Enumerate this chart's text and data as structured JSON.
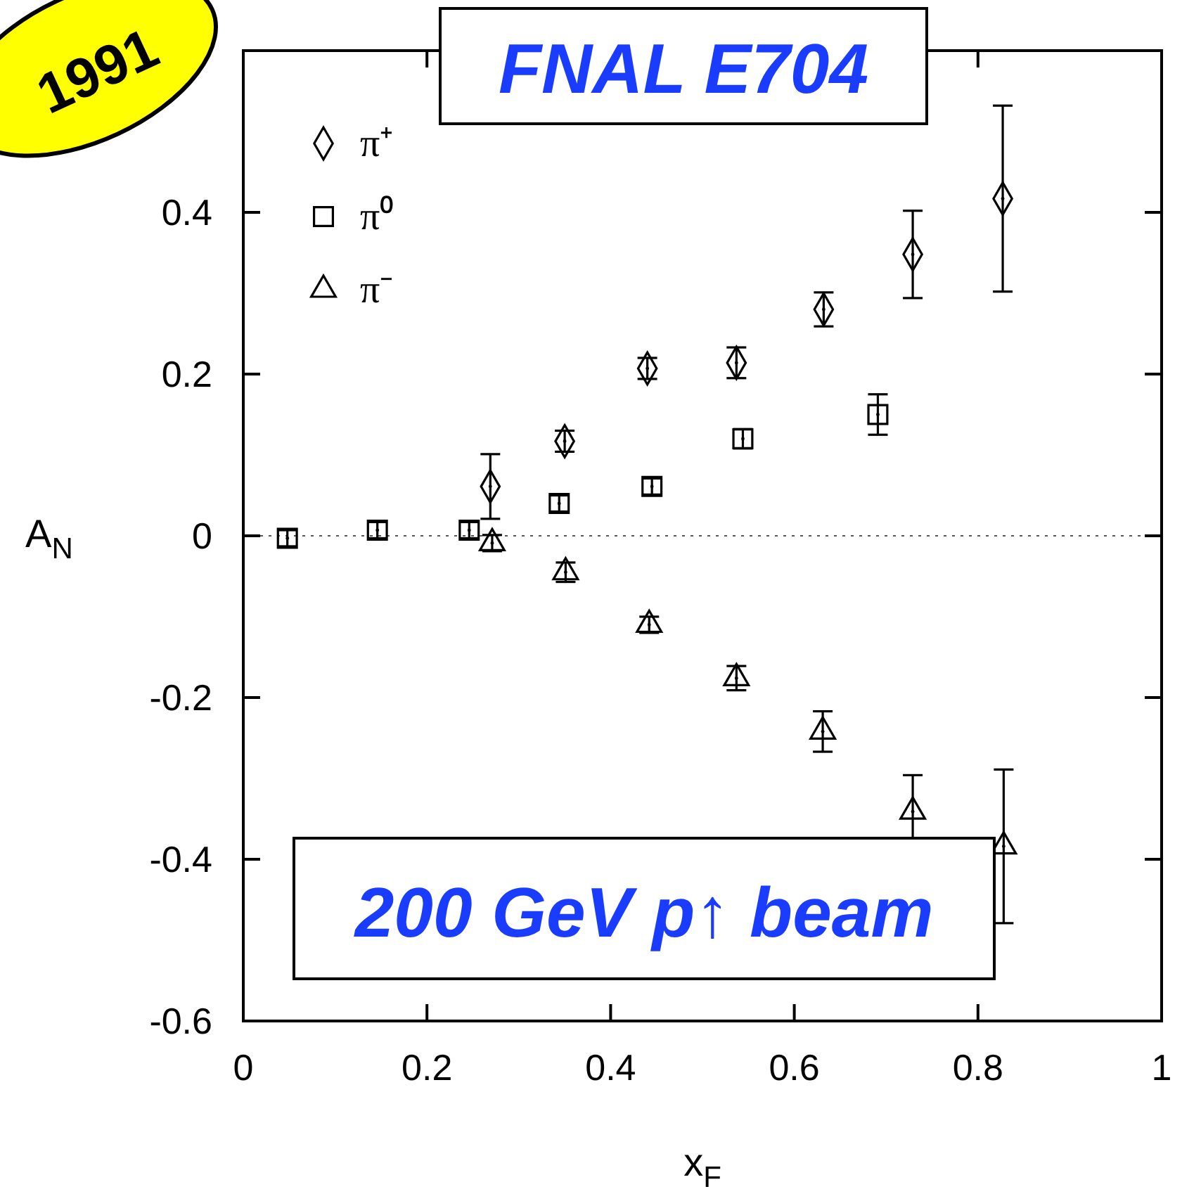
{
  "chart_data": {
    "type": "scatter",
    "xlabel": "x$_{F}$",
    "ylabel": "A$_{N}$",
    "annotations": [
      "FNAL E704",
      "200 GeV p↑ beam",
      "1991"
    ],
    "xlim": [
      0,
      1
    ],
    "ylim": [
      -0.6,
      0.6
    ],
    "xticks": [
      0,
      0.2,
      0.4,
      0.6,
      0.8,
      1
    ],
    "yticks": [
      -0.6,
      -0.4,
      -0.2,
      0,
      0.2,
      0.4
    ],
    "grid": false,
    "legend": "top left",
    "ref_lines": [
      {
        "axis": "y",
        "value": 0,
        "line_style": "dotted"
      }
    ],
    "series": [
      {
        "name": "π⁺",
        "color": "#000000",
        "marker": "diamond",
        "x": [
          0.269,
          0.35,
          0.44,
          0.537,
          0.632,
          0.729,
          0.827
        ],
        "values": [
          0.061,
          0.117,
          0.207,
          0.214,
          0.28,
          0.348,
          0.417
        ],
        "errors": [
          0.04,
          0.013,
          0.013,
          0.019,
          0.021,
          0.054,
          0.115
        ]
      },
      {
        "name": "π⁰",
        "color": "#000000",
        "marker": "square",
        "x": [
          0.048,
          0.146,
          0.246,
          0.344,
          0.445,
          0.544,
          0.691
        ],
        "values": [
          -0.003,
          0.007,
          0.007,
          0.04,
          0.061,
          0.12,
          0.15
        ],
        "errors": [
          0.01,
          0.01,
          0.01,
          0.01,
          0.01,
          0.012,
          0.025
        ]
      },
      {
        "name": "π⁻",
        "color": "#000000",
        "marker": "triangle",
        "x": [
          0.271,
          0.351,
          0.442,
          0.537,
          0.631,
          0.729,
          0.828
        ],
        "values": [
          -0.009,
          -0.045,
          -0.11,
          -0.176,
          -0.242,
          -0.341,
          -0.384
        ],
        "errors": [
          0.01,
          0.012,
          0.01,
          0.015,
          0.025,
          0.045,
          0.095
        ]
      }
    ]
  }
}
